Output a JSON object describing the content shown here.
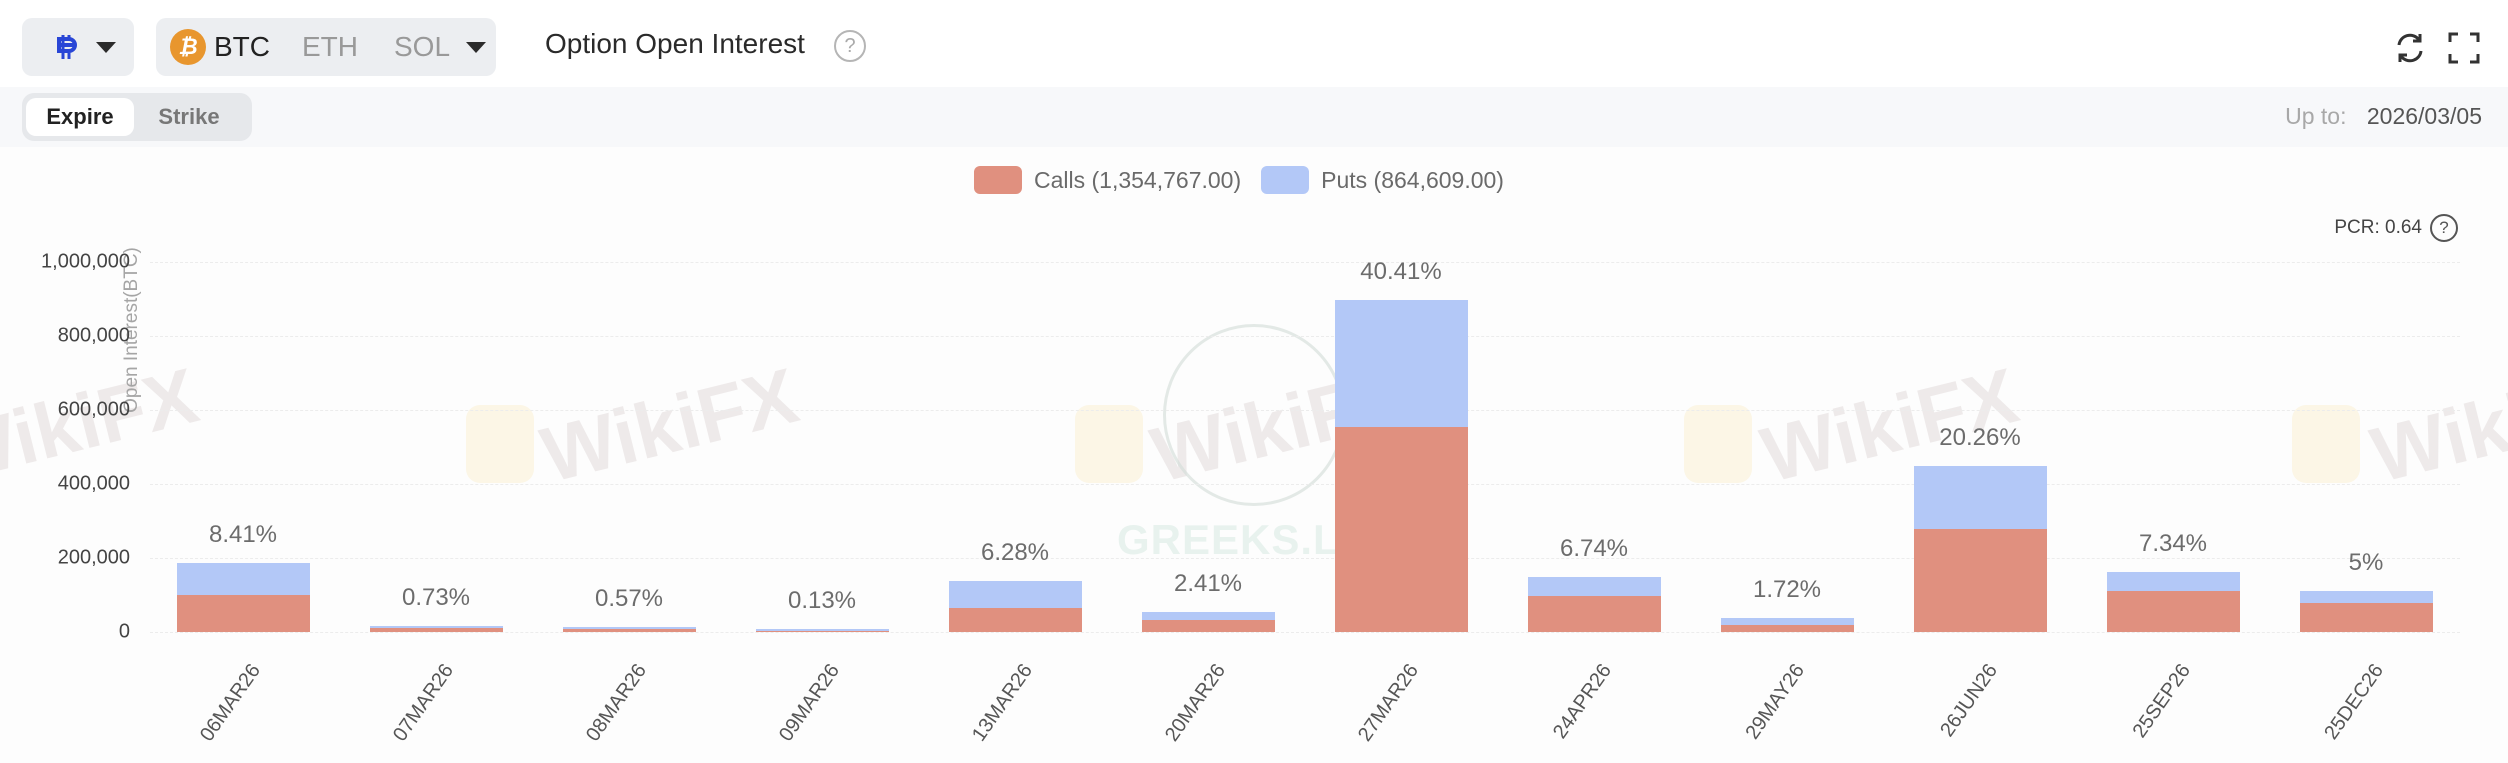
{
  "header": {
    "platform_icon": "deribit-icon",
    "coins": [
      {
        "label": "BTC",
        "icon": "bitcoin-icon",
        "active": true
      },
      {
        "label": "ETH",
        "active": false
      },
      {
        "label": "SOL",
        "active": false
      }
    ],
    "title": "Option Open Interest",
    "help_glyph": "?",
    "refresh_icon": "refresh-icon",
    "fullscreen_icon": "fullscreen-icon"
  },
  "tabs": [
    {
      "label": "Expire",
      "active": true
    },
    {
      "label": "Strike",
      "active": false
    }
  ],
  "upto": {
    "label": "Up to:",
    "value": "2026/03/05"
  },
  "legend": {
    "calls": "Calls (1,354,767.00)",
    "puts": "Puts (864,609.00)"
  },
  "pcr": {
    "label": "PCR: 0.64",
    "help_glyph": "?"
  },
  "colors": {
    "calls": "#e0907f",
    "puts": "#b3c8f7"
  },
  "watermarks": {
    "wikifx": "WikiFX",
    "greeks": "GREEKS.LIVE"
  },
  "chart_data": {
    "type": "bar",
    "stacked": true,
    "title": "Option Open Interest",
    "xlabel": "",
    "ylabel": "Open Interest(BTC)",
    "ylim": [
      0,
      1000000
    ],
    "yticks": [
      "0",
      "200,000",
      "400,000",
      "600,000",
      "800,000",
      "1,000,000"
    ],
    "grid": true,
    "legend_position": "top",
    "categories": [
      "06MAR26",
      "07MAR26",
      "08MAR26",
      "09MAR26",
      "13MAR26",
      "20MAR26",
      "27MAR26",
      "24APR26",
      "29MAY26",
      "26JUN26",
      "25SEP26",
      "25DEC26"
    ],
    "series": [
      {
        "name": "Calls",
        "total": 1354767.0,
        "values": [
          99000,
          11000,
          8000,
          1500,
          64000,
          32000,
          554000,
          97000,
          19000,
          278000,
          111000,
          78000
        ]
      },
      {
        "name": "Puts",
        "total": 864609.0,
        "values": [
          87000,
          5000,
          4600,
          1400,
          75000,
          21000,
          343000,
          53000,
          19000,
          172000,
          52000,
          33000
        ]
      }
    ],
    "percent_labels": [
      "8.41%",
      "0.73%",
      "0.57%",
      "0.13%",
      "6.28%",
      "2.41%",
      "40.41%",
      "6.74%",
      "1.72%",
      "20.26%",
      "7.34%",
      "5%"
    ],
    "pcr": 0.64
  }
}
